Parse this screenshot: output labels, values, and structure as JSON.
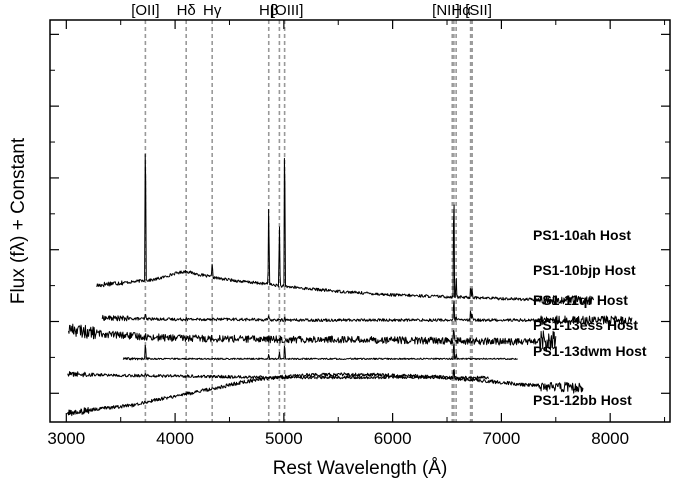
{
  "chart_data": {
    "type": "line",
    "title": "",
    "xlabel": "Rest Wavelength (Å)",
    "ylabel": "Flux (fλ) + Constant",
    "xlim": [
      2850,
      8550
    ],
    "ylim": [
      -1.4,
      4.2
    ],
    "x_ticks": [
      3000,
      4000,
      5000,
      6000,
      7000,
      8000
    ],
    "x_tick_labels": [
      "3000",
      "4000",
      "5000",
      "6000",
      "7000",
      "8000"
    ],
    "x_minor_ticks": [
      3500,
      4500,
      5500,
      6500,
      7500,
      8500
    ],
    "y_major_ticks": [
      -1,
      0,
      1,
      2,
      3,
      4
    ],
    "y_minor_ticks": [
      -0.5,
      0.5,
      1.5,
      2.5,
      3.5
    ],
    "y_tick_labels_shown": false,
    "grid": false,
    "legend": "none",
    "emission_lines": [
      {
        "label": "[OII]",
        "wavelengths": [
          3727
        ],
        "label_x": 3727
      },
      {
        "label": "Hδ",
        "wavelengths": [
          4102
        ],
        "label_x": 4102
      },
      {
        "label": "Hγ",
        "wavelengths": [
          4341
        ],
        "label_x": 4341
      },
      {
        "label": "Hβ",
        "wavelengths": [
          4861
        ],
        "label_x": 4861
      },
      {
        "label": "[OIII]",
        "wavelengths": [
          4959,
          5007
        ],
        "label_x": 5030
      },
      {
        "label": "[NII]",
        "wavelengths": [
          6548,
          6584
        ],
        "label_x": 6490
      },
      {
        "label": "Hα",
        "wavelengths": [
          6563
        ],
        "label_x": 6630
      },
      {
        "label": "[SII]",
        "wavelengths": [
          6717,
          6731
        ],
        "label_x": 6790
      }
    ],
    "series": [
      {
        "name": "PS1-10ah Host",
        "x": [
          3280,
          3400,
          3600,
          3700,
          3800,
          3900,
          4000,
          4100,
          4200,
          4300,
          4400,
          4600,
          4800,
          5000,
          5200,
          5500,
          5800,
          6000,
          6200,
          6400,
          6600,
          6800,
          7000,
          7200,
          7400,
          7600,
          7850
        ],
        "y": [
          0.5,
          0.53,
          0.55,
          0.57,
          0.58,
          0.62,
          0.67,
          0.7,
          0.66,
          0.63,
          0.6,
          0.56,
          0.53,
          0.49,
          0.46,
          0.42,
          0.39,
          0.37,
          0.36,
          0.35,
          0.34,
          0.33,
          0.32,
          0.31,
          0.3,
          0.3,
          0.3
        ],
        "noise": 0.02,
        "spikes": [
          [
            3727,
            2.48
          ],
          [
            4341,
            0.23
          ],
          [
            4861,
            1.22
          ],
          [
            4959,
            0.95
          ],
          [
            5007,
            2.48
          ],
          [
            6563,
            1.8
          ],
          [
            6584,
            0.32
          ],
          [
            6717,
            0.18
          ],
          [
            6731,
            0.15
          ]
        ]
      },
      {
        "name": "PS1-10bjp Host",
        "x": [
          3330,
          3600,
          4000,
          4500,
          5000,
          5500,
          6000,
          6500,
          7000,
          7500,
          8000,
          8200
        ],
        "y": [
          0.05,
          0.04,
          0.03,
          0.03,
          0.02,
          0.02,
          0.02,
          0.02,
          0.02,
          0.02,
          0.02,
          0.02
        ],
        "noise": 0.02,
        "spikes": [
          [
            3727,
            0.08
          ],
          [
            4102,
            0.04
          ],
          [
            4861,
            0.05
          ],
          [
            5007,
            0.06
          ],
          [
            6563,
            0.35
          ],
          [
            6584,
            0.06
          ],
          [
            6717,
            0.15
          ],
          [
            6731,
            0.1
          ]
        ]
      },
      {
        "name": "PS1-11qr Host",
        "x": [
          3020,
          3200,
          3400,
          3600,
          3800,
          4000,
          4500,
          5000,
          5500,
          6000,
          6500,
          7000,
          7500
        ],
        "y": [
          -0.1,
          -0.15,
          -0.18,
          -0.2,
          -0.22,
          -0.23,
          -0.24,
          -0.25,
          -0.25,
          -0.26,
          -0.27,
          -0.28,
          -0.28
        ],
        "noise": 0.05,
        "spikes": [
          [
            6563,
            0.18
          ]
        ]
      },
      {
        "name": "PS1-13ess Host",
        "x": [
          3520,
          4000,
          4500,
          5000,
          5500,
          6000,
          6500,
          7000,
          7150
        ],
        "y": [
          -0.52,
          -0.52,
          -0.52,
          -0.52,
          -0.52,
          -0.52,
          -0.52,
          -0.52,
          -0.52
        ],
        "noise": 0.01,
        "spikes": [
          [
            3727,
            0.25
          ],
          [
            4861,
            0.08
          ],
          [
            4959,
            0.1
          ],
          [
            5007,
            0.25
          ],
          [
            6563,
            0.3
          ],
          [
            6584,
            0.08
          ]
        ]
      },
      {
        "name": "PS1-13dwm Host",
        "x": [
          3010,
          3500,
          4000,
          4500,
          5000,
          5500,
          6000,
          6500,
          6880
        ],
        "y": [
          -0.73,
          -0.75,
          -0.76,
          -0.77,
          -0.78,
          -0.78,
          -0.78,
          -0.78,
          -0.78
        ],
        "noise": 0.02,
        "spikes": [
          [
            3727,
            0.06
          ],
          [
            6563,
            0.15
          ]
        ]
      },
      {
        "name": "PS1-12bb Host",
        "x": [
          3010,
          3200,
          3400,
          3600,
          3800,
          4000,
          4200,
          4400,
          4600,
          4800,
          5000,
          5200,
          5500,
          5800,
          6000,
          6200,
          6400,
          6600,
          6800,
          7000,
          7200,
          7400,
          7600,
          7750
        ],
        "y": [
          -1.28,
          -1.24,
          -1.2,
          -1.17,
          -1.1,
          -1.04,
          -0.98,
          -0.92,
          -0.85,
          -0.8,
          -0.77,
          -0.75,
          -0.74,
          -0.74,
          -0.75,
          -0.76,
          -0.77,
          -0.8,
          -0.82,
          -0.85,
          -0.88,
          -0.9,
          -0.92,
          -0.93
        ],
        "noise": 0.025,
        "spikes": [
          [
            6563,
            0.2
          ]
        ]
      }
    ]
  }
}
